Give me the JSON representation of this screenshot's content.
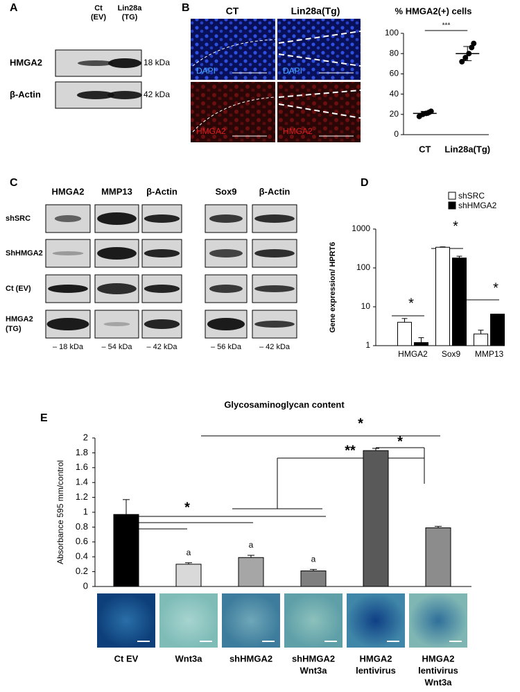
{
  "panel_labels": [
    "A",
    "B",
    "C",
    "D",
    "E"
  ],
  "blot_a": {
    "lanes": [
      [
        "Ct",
        "(EV)"
      ],
      [
        "Lin28a",
        "(TG)"
      ]
    ],
    "rows": [
      "HMGA2",
      "β-Actin"
    ],
    "sizes": [
      "18 kDa",
      "42 kDa"
    ]
  },
  "micrographs": {
    "columns": [
      "CT",
      "Lin28a(Tg)"
    ],
    "stains": [
      "DAPI",
      "HMGA2"
    ]
  },
  "blot_c": {
    "columns": [
      "HMGA2",
      "MMP13",
      "β-Actin",
      "Sox9",
      "β-Actin"
    ],
    "rows": [
      [
        "shSRC"
      ],
      [
        "ShHMGA2"
      ],
      [
        "Ct (EV)"
      ],
      [
        "HMGA2",
        "(TG)"
      ]
    ],
    "sizes": [
      "– 18 kDa",
      "– 54 kDa",
      "– 42 kDa",
      "– 56 kDa",
      "– 42 kDa"
    ]
  },
  "chart_data": [
    {
      "type": "dot",
      "title": "% HMGA2(+) cells",
      "categories": [
        "CT",
        "Lin28a(Tg)"
      ],
      "points": [
        [
          18,
          20,
          21,
          22,
          23
        ],
        [
          72,
          76,
          80,
          86,
          90
        ]
      ],
      "means": [
        21,
        80
      ],
      "errors": [
        2,
        7
      ],
      "ylim": [
        0,
        100
      ],
      "yticks": [
        0,
        20,
        40,
        60,
        80,
        100
      ],
      "annotation": "***",
      "color": "#000000"
    },
    {
      "type": "bar",
      "ylabel": "Gene expression/ HPRT6",
      "log_scale": true,
      "legend": "top-right",
      "categories": [
        "HMGA2",
        "Sox9",
        "MMP13"
      ],
      "series": [
        {
          "name": "shSRC",
          "color": "#ffffff",
          "values": [
            4,
            340,
            2
          ],
          "errors": [
            1,
            8,
            0.5
          ]
        },
        {
          "name": "shHMGA2",
          "color": "#000000",
          "values": [
            1.2,
            180,
            6.5
          ],
          "errors": [
            0.4,
            20,
            0
          ]
        }
      ],
      "ylim": [
        1,
        1000
      ],
      "yticks": [
        1,
        10,
        100,
        1000
      ],
      "annotations": [
        "*",
        "*",
        "*"
      ]
    },
    {
      "type": "bar",
      "title": "Glycosaminoglycan content",
      "ylabel": "Absorbance 595 mm/control",
      "categories": [
        [
          "Ct EV"
        ],
        [
          "Wnt3a"
        ],
        [
          "shHMGA2"
        ],
        [
          "shHMGA2",
          "Wnt3a"
        ],
        [
          "HMGA2",
          "lentivirus"
        ],
        [
          "HMGA2",
          "lentivirus",
          "Wnt3a"
        ]
      ],
      "values": [
        0.97,
        0.3,
        0.39,
        0.21,
        1.83,
        0.79
      ],
      "errors": [
        0.2,
        0.02,
        0.03,
        0.02,
        0.03,
        0.02
      ],
      "colors": [
        "#000000",
        "#d9d9d9",
        "#a6a6a6",
        "#7f7f7f",
        "#595959",
        "#8c8c8c"
      ],
      "value_letters": [
        null,
        "a",
        "a",
        "a",
        null,
        null
      ],
      "ylim": [
        0,
        2
      ],
      "yticks": [
        0,
        0.2,
        0.4,
        0.6,
        0.8,
        1,
        1.2,
        1.4,
        1.6,
        1.8,
        2
      ],
      "annotations": [
        "*",
        "**",
        "*",
        "*"
      ]
    }
  ]
}
